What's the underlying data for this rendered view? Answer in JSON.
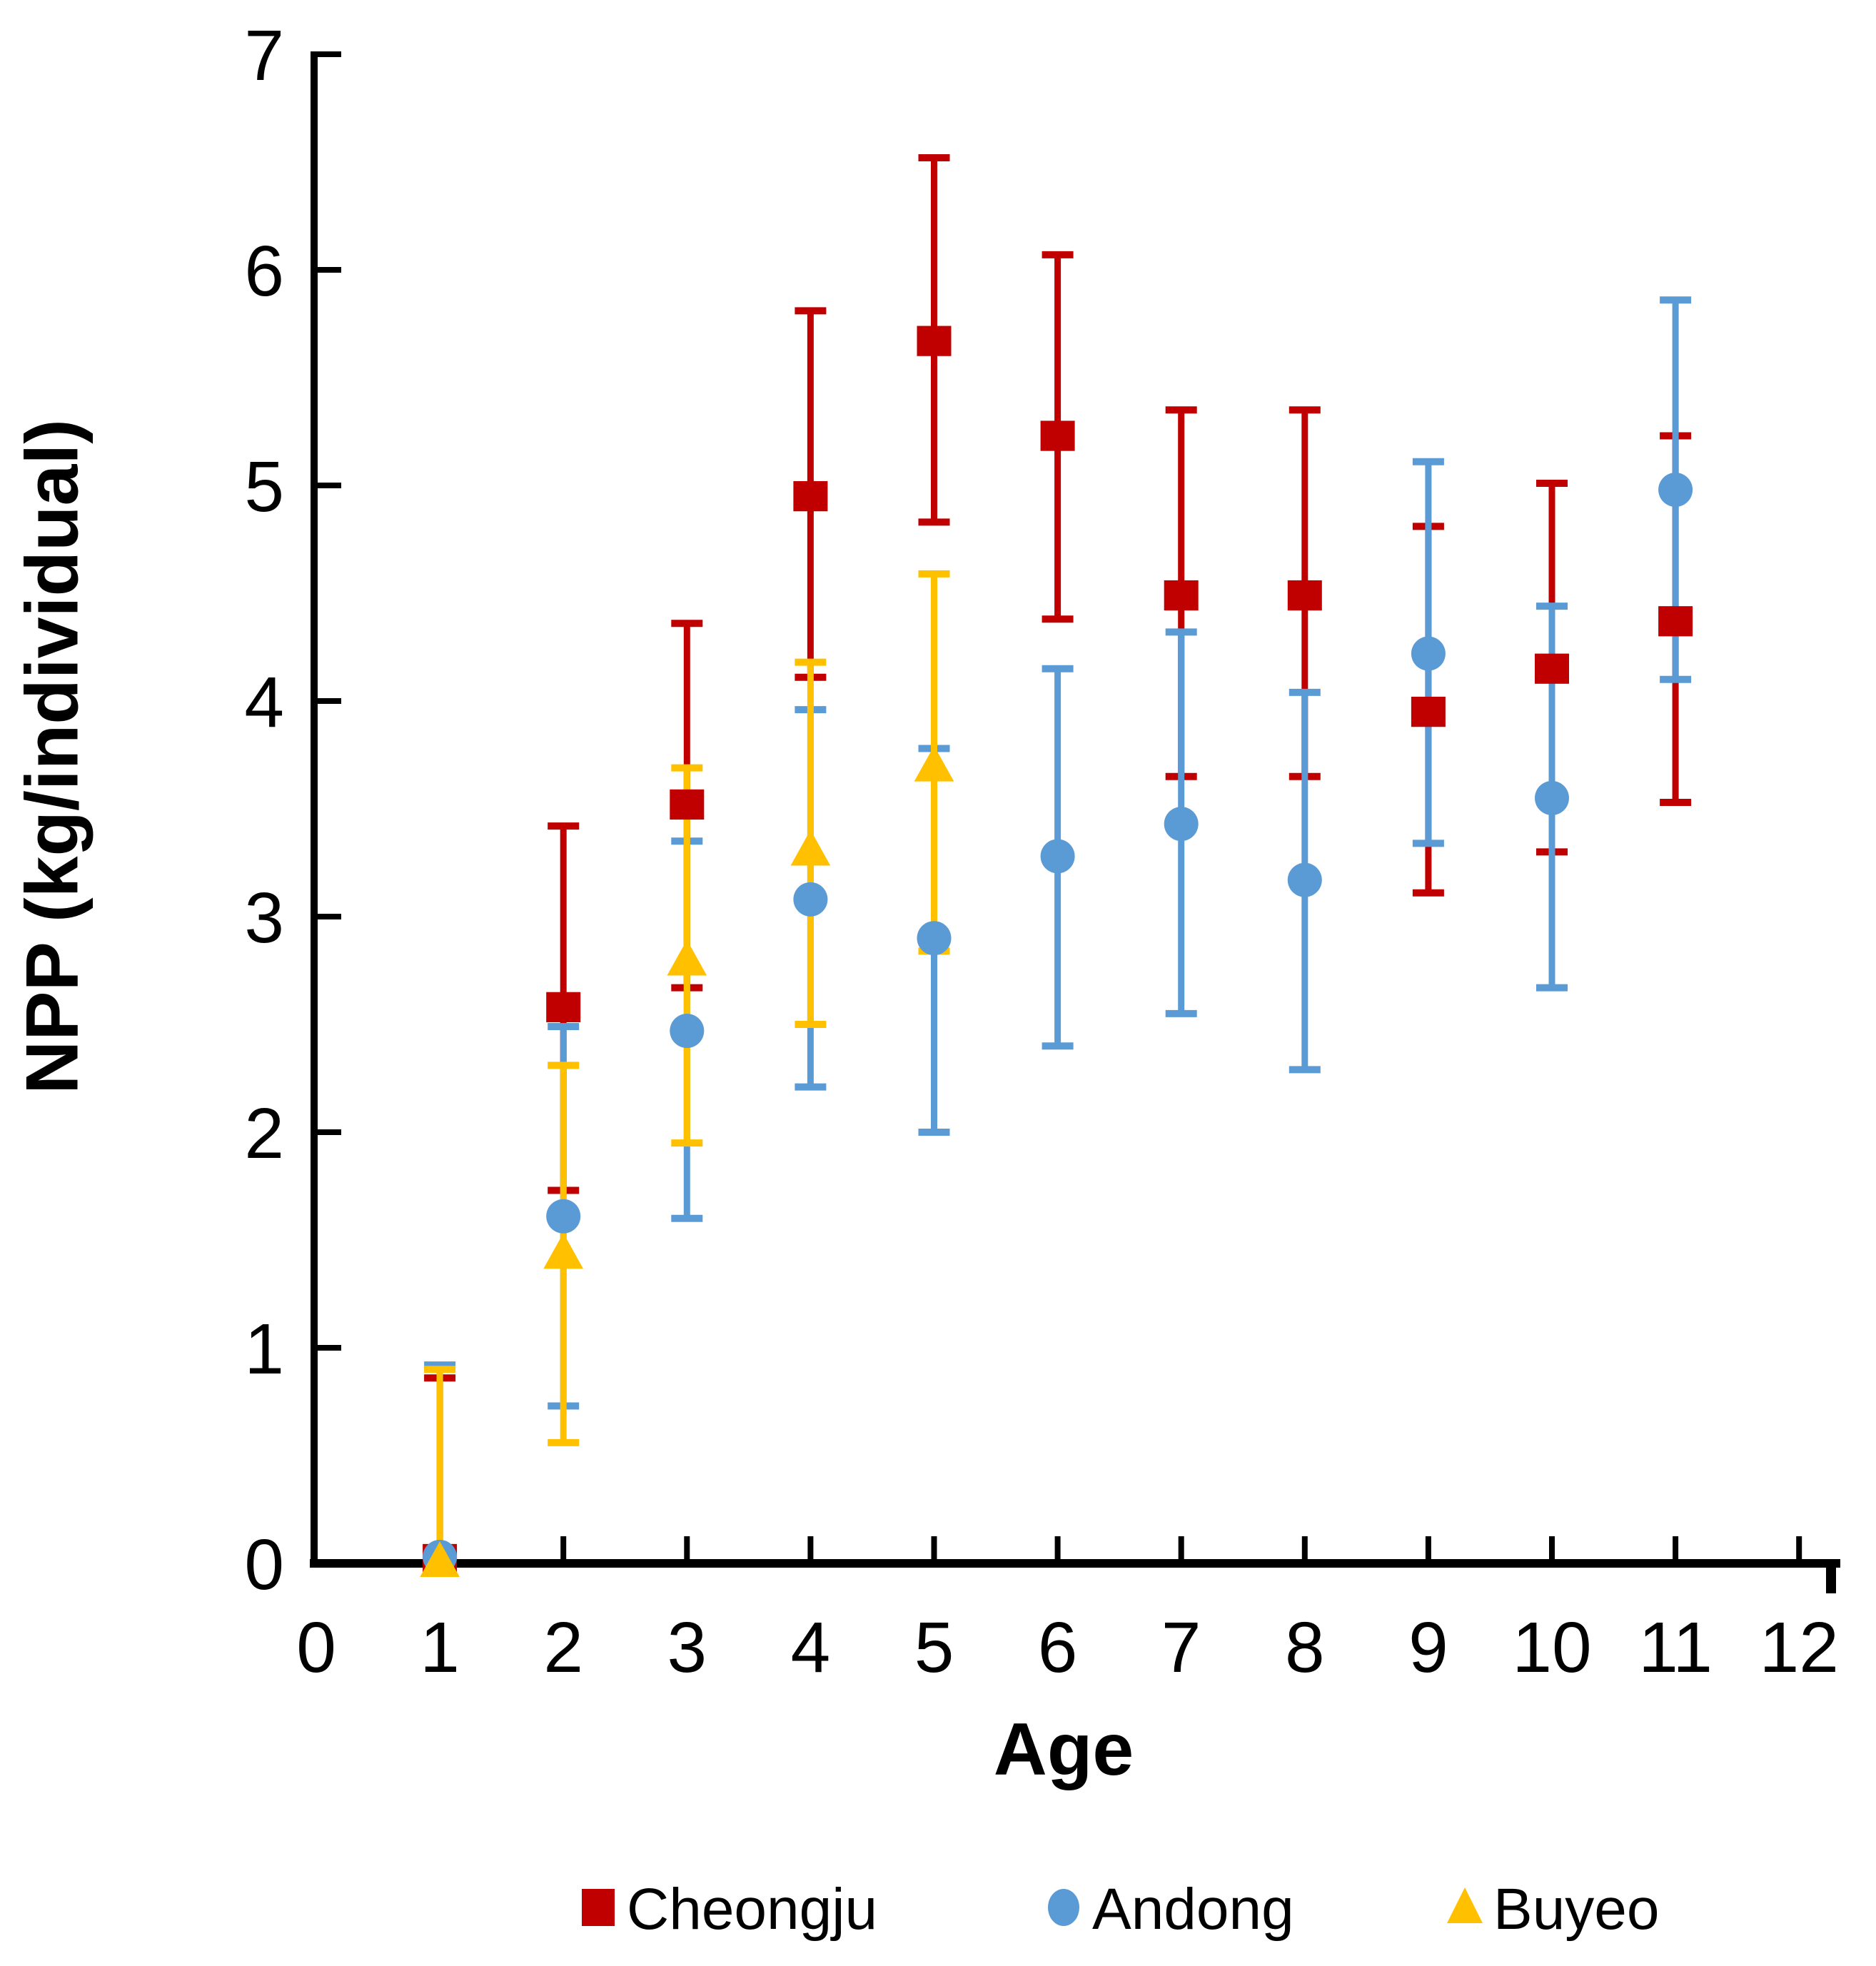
{
  "figure": {
    "background": "#ffffff",
    "axis_color": "#000000"
  },
  "chart_data": {
    "type": "scatter",
    "title": "",
    "xlabel": "Age",
    "ylabel": "NPP (kg/individual)",
    "xlim": [
      0,
      12
    ],
    "ylim": [
      0,
      7
    ],
    "xticks": [
      0,
      1,
      2,
      3,
      4,
      5,
      6,
      7,
      8,
      9,
      10,
      11,
      12
    ],
    "yticks": [
      0,
      1,
      2,
      3,
      4,
      5,
      6,
      7
    ],
    "grid": false,
    "error_bars": true,
    "legend_position": "bottom",
    "series": [
      {
        "name": "Cheongju",
        "color": "#C00000",
        "marker": "square",
        "points": [
          {
            "x": 1,
            "y": 0.02,
            "lo": 0.02,
            "hi": 0.86
          },
          {
            "x": 2,
            "y": 2.58,
            "lo": 1.73,
            "hi": 3.42
          },
          {
            "x": 3,
            "y": 3.52,
            "lo": 2.67,
            "hi": 4.36
          },
          {
            "x": 4,
            "y": 4.95,
            "lo": 4.11,
            "hi": 5.81
          },
          {
            "x": 5,
            "y": 5.67,
            "lo": 4.83,
            "hi": 6.52
          },
          {
            "x": 6,
            "y": 5.23,
            "lo": 4.38,
            "hi": 6.07
          },
          {
            "x": 7,
            "y": 4.49,
            "lo": 3.65,
            "hi": 5.35
          },
          {
            "x": 8,
            "y": 4.49,
            "lo": 3.65,
            "hi": 5.35
          },
          {
            "x": 9,
            "y": 3.95,
            "lo": 3.11,
            "hi": 4.81
          },
          {
            "x": 10,
            "y": 4.15,
            "lo": 3.3,
            "hi": 5.01
          },
          {
            "x": 11,
            "y": 4.37,
            "lo": 3.53,
            "hi": 5.23
          }
        ]
      },
      {
        "name": "Andong",
        "color": "#5B9BD5",
        "marker": "circle",
        "points": [
          {
            "x": 1,
            "y": 0.03,
            "lo": 0.03,
            "hi": 0.92
          },
          {
            "x": 2,
            "y": 1.61,
            "lo": 0.73,
            "hi": 2.49
          },
          {
            "x": 3,
            "y": 2.47,
            "lo": 1.6,
            "hi": 3.35
          },
          {
            "x": 4,
            "y": 3.08,
            "lo": 2.21,
            "hi": 3.96
          },
          {
            "x": 5,
            "y": 2.9,
            "lo": 2.0,
            "hi": 3.78
          },
          {
            "x": 6,
            "y": 3.28,
            "lo": 2.4,
            "hi": 4.15
          },
          {
            "x": 7,
            "y": 3.43,
            "lo": 2.55,
            "hi": 4.32
          },
          {
            "x": 8,
            "y": 3.17,
            "lo": 2.29,
            "hi": 4.04
          },
          {
            "x": 9,
            "y": 4.22,
            "lo": 3.34,
            "hi": 5.11
          },
          {
            "x": 10,
            "y": 3.55,
            "lo": 2.67,
            "hi": 4.44
          },
          {
            "x": 11,
            "y": 4.98,
            "lo": 4.1,
            "hi": 5.86
          }
        ]
      },
      {
        "name": "Buyeo",
        "color": "#FFC000",
        "marker": "triangle",
        "points": [
          {
            "x": 1,
            "y": 0.01,
            "lo": 0.01,
            "hi": 0.9
          },
          {
            "x": 2,
            "y": 1.44,
            "lo": 0.56,
            "hi": 2.31
          },
          {
            "x": 3,
            "y": 2.8,
            "lo": 1.95,
            "hi": 3.69
          },
          {
            "x": 4,
            "y": 3.31,
            "lo": 2.5,
            "hi": 4.18
          },
          {
            "x": 5,
            "y": 3.7,
            "lo": 2.84,
            "hi": 4.59
          }
        ]
      }
    ]
  }
}
